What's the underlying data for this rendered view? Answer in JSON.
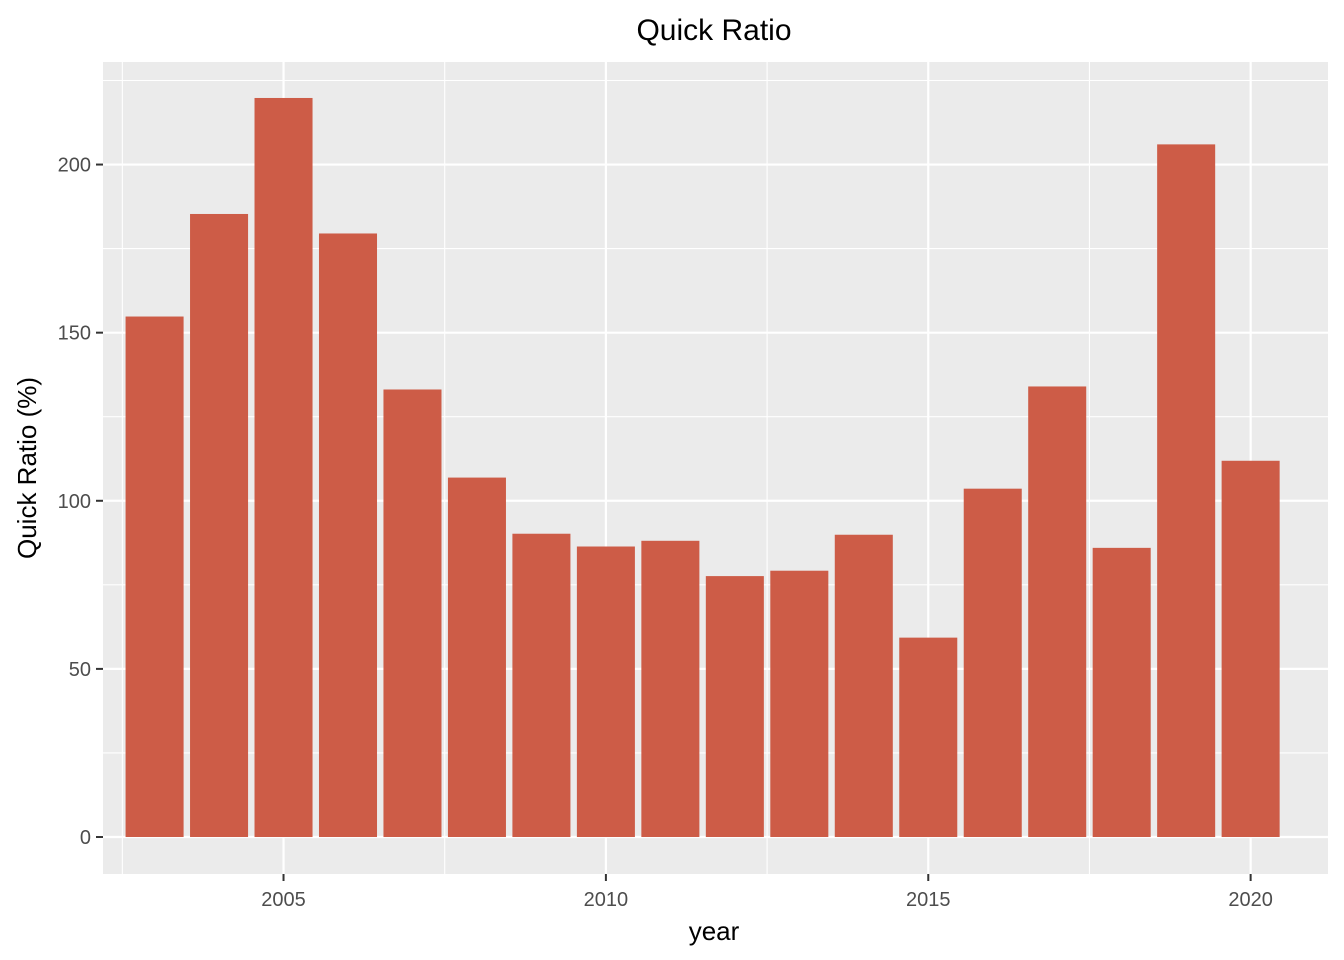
{
  "chart_data": {
    "type": "bar",
    "title": "Quick Ratio",
    "xlabel": "year",
    "ylabel": "Quick Ratio (%)",
    "categories": [
      2003,
      2004,
      2005,
      2006,
      2007,
      2008,
      2009,
      2010,
      2011,
      2012,
      2013,
      2014,
      2015,
      2016,
      2017,
      2018,
      2019,
      2020
    ],
    "values": [
      154.8,
      185.3,
      219.8,
      179.5,
      133.1,
      106.9,
      90.2,
      86.4,
      88.1,
      77.6,
      79.2,
      89.9,
      59.3,
      103.6,
      134.0,
      86.0,
      206.0,
      111.9
    ],
    "x_ticks": [
      2005,
      2010,
      2015,
      2020
    ],
    "y_ticks": [
      0,
      50,
      100,
      150,
      200
    ],
    "xlim": [
      2002.2,
      2021.2
    ],
    "ylim": [
      -11,
      230.5
    ],
    "bar_color": "#cd5c47",
    "panel_color": "#ebebeb",
    "grid_color": "#ffffff",
    "grid": true,
    "legend": "none"
  }
}
